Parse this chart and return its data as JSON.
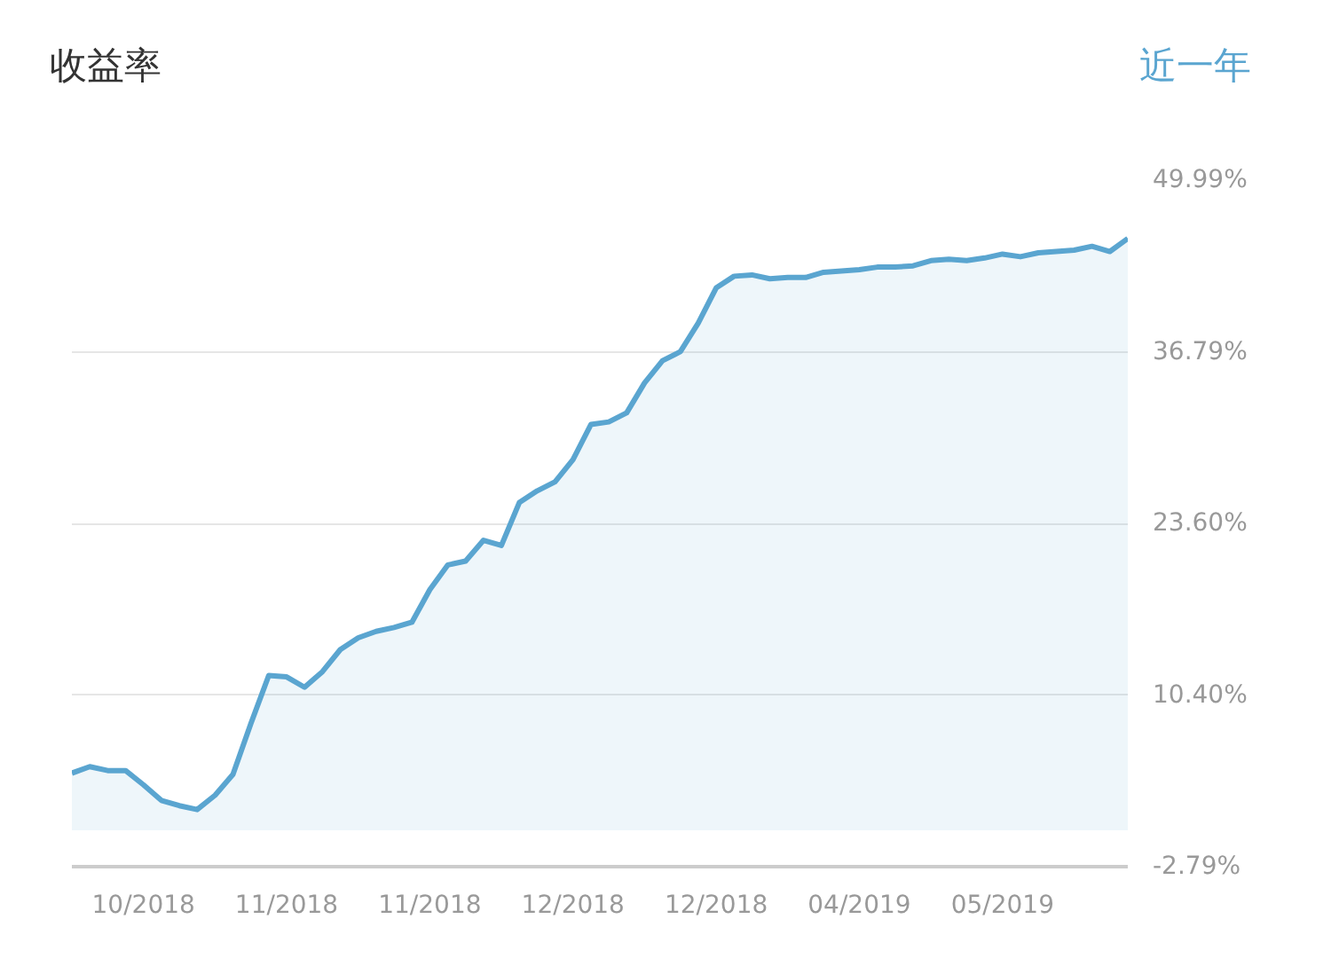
{
  "chart_data": {
    "type": "area",
    "title": "收益率",
    "annotations": [
      "近一年"
    ],
    "categories": [
      null,
      null,
      null,
      null,
      "10/2018",
      null,
      null,
      null,
      null,
      null,
      null,
      null,
      "11/2018",
      null,
      null,
      null,
      null,
      null,
      null,
      null,
      "11/2018",
      null,
      null,
      null,
      null,
      null,
      null,
      null,
      "12/2018",
      null,
      null,
      null,
      null,
      null,
      null,
      null,
      "12/2018",
      null,
      null,
      null,
      null,
      null,
      null,
      null,
      "04/2019",
      null,
      null,
      null,
      null,
      null,
      null,
      null,
      "05/2019",
      null,
      null,
      null,
      null,
      null,
      null,
      null
    ],
    "series": [
      {
        "color": "#5aa5d0",
        "values": [
          4.4,
          4.9,
          4.6,
          4.6,
          3.5,
          2.3,
          1.9,
          1.6,
          2.7,
          4.3,
          8.2,
          11.9,
          11.8,
          11.0,
          12.2,
          13.9,
          14.8,
          15.3,
          15.6,
          16.0,
          18.5,
          20.4,
          20.7,
          22.3,
          21.9,
          25.2,
          26.1,
          26.8,
          28.5,
          31.2,
          31.4,
          32.1,
          34.4,
          36.1,
          36.8,
          39.0,
          41.7,
          42.6,
          42.7,
          42.4,
          42.5,
          42.5,
          42.9,
          43.0,
          43.1,
          43.3,
          43.3,
          43.4,
          43.8,
          43.9,
          43.8,
          44.0,
          44.3,
          44.1,
          44.4,
          44.5,
          44.6,
          44.9,
          44.5,
          45.5
        ]
      }
    ],
    "ylim": [
      -2.79,
      49.99
    ],
    "yticks": [
      {
        "value": -2.79,
        "label": "-2.79%"
      },
      {
        "value": 10.4,
        "label": "10.40%"
      },
      {
        "value": 23.6,
        "label": "23.60%"
      },
      {
        "value": 36.79,
        "label": "36.79%"
      },
      {
        "value": 49.99,
        "label": "49.99%"
      }
    ],
    "grid": "y"
  }
}
